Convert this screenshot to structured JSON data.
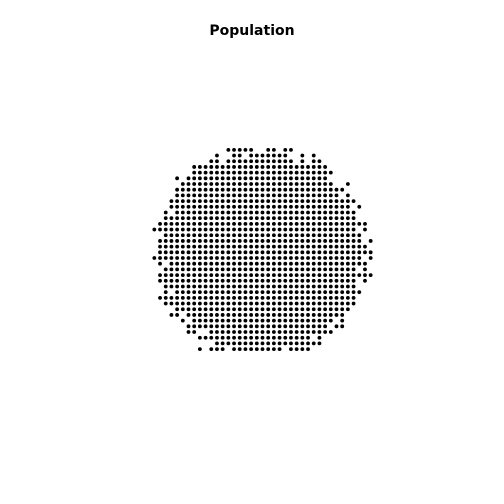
{
  "chart_data": {
    "type": "scatter",
    "title": "Population",
    "xlabel": "",
    "ylabel": "",
    "axes_visible": false,
    "grid": false,
    "legend": "none",
    "point_color": "#000000",
    "background_color": "#ffffff",
    "xlim": [
      -1,
      1
    ],
    "ylim": [
      -1,
      1
    ],
    "population": {
      "shape": "roughly circular cluster on a regular lattice",
      "lattice_spacing": 0.033,
      "center": [
        0,
        0
      ],
      "radius": 0.61,
      "boundary_noise": 0.03,
      "x_range": [
        -0.66,
        0.63
      ],
      "y_range": [
        -0.56,
        0.6
      ]
    }
  }
}
